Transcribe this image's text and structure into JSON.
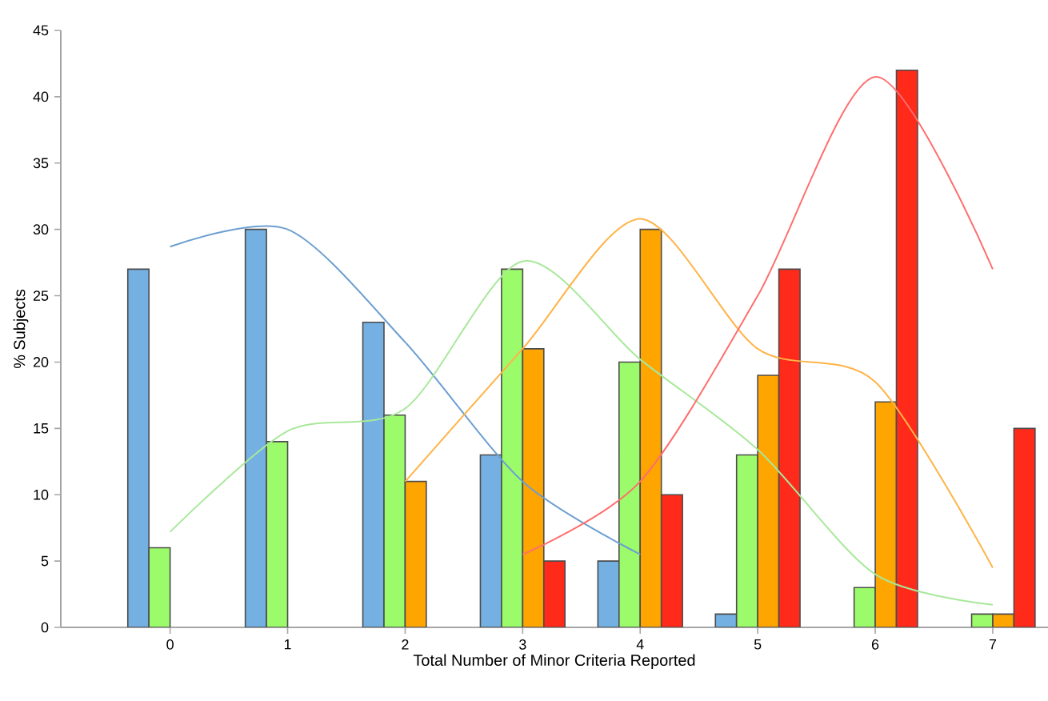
{
  "chart_data": {
    "type": "bar",
    "xlabel": "Total Number of Minor Criteria Reported",
    "ylabel": "% Subjects",
    "categories": [
      "0",
      "1",
      "2",
      "3",
      "4",
      "5",
      "6",
      "7"
    ],
    "ylim": [
      0,
      45
    ],
    "yticks": [
      0,
      5,
      10,
      15,
      20,
      25,
      30,
      35,
      40,
      45
    ],
    "grid": false,
    "series": [
      {
        "color": "#74b0e2",
        "values": [
          27,
          30,
          23,
          13,
          5,
          1,
          null,
          null
        ]
      },
      {
        "color": "#9cfb6a",
        "values": [
          6,
          14,
          16,
          27,
          20,
          13,
          3,
          1
        ]
      },
      {
        "color": "#ffa500",
        "values": [
          null,
          null,
          11,
          21,
          30,
          19,
          17,
          1
        ]
      },
      {
        "color": "#ff2a1a",
        "values": [
          null,
          null,
          null,
          5,
          10,
          27,
          42,
          15
        ]
      },
      {
        "type": "line",
        "color": "#6c9fd0",
        "values": [
          28.7,
          30,
          21.5,
          11,
          5.5,
          null,
          null,
          null
        ]
      },
      {
        "type": "line",
        "color": "#a8e89a",
        "values": [
          7.2,
          14.8,
          16.5,
          27.6,
          20.2,
          13.4,
          4,
          1.7
        ]
      },
      {
        "type": "line",
        "color": "#ffb347",
        "values": [
          null,
          null,
          11,
          21,
          30.8,
          21,
          18.5,
          4.5
        ]
      },
      {
        "type": "line",
        "color": "#ff6e6e",
        "values": [
          null,
          null,
          null,
          5.5,
          11,
          25,
          41.5,
          27
        ]
      }
    ]
  }
}
